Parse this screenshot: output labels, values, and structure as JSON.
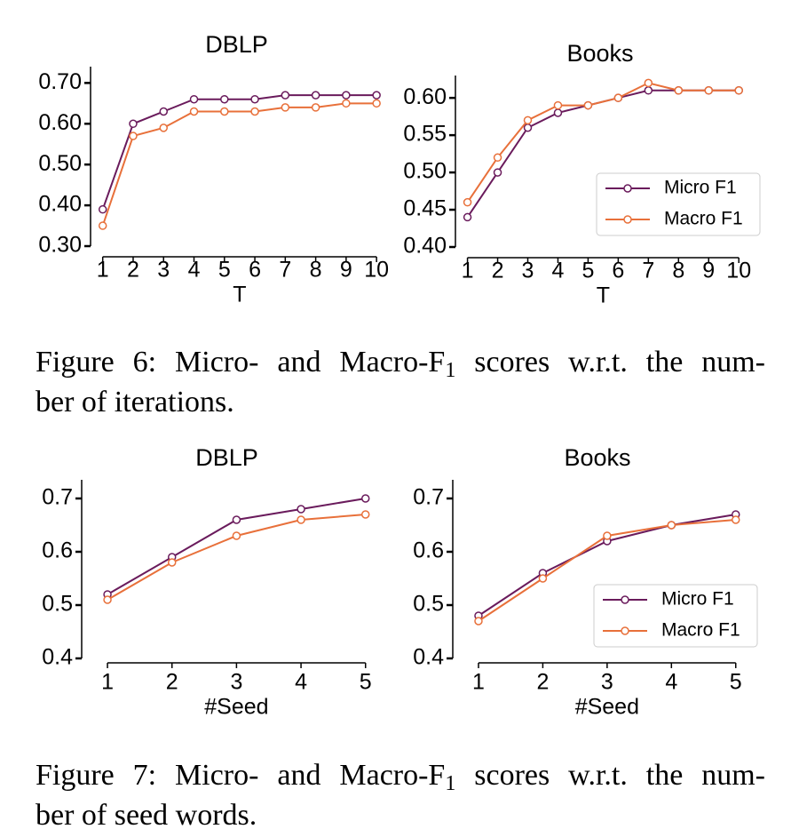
{
  "chart_data": [
    {
      "type": "line",
      "title": "DBLP",
      "xlabel": "T",
      "x": [
        1,
        2,
        3,
        4,
        5,
        6,
        7,
        8,
        9,
        10
      ],
      "series": [
        {
          "name": "Micro F1",
          "color": "#6a1b5c",
          "values": [
            0.39,
            0.6,
            0.63,
            0.66,
            0.66,
            0.66,
            0.67,
            0.67,
            0.67,
            0.67
          ]
        },
        {
          "name": "Macro F1",
          "color": "#e8703a",
          "values": [
            0.35,
            0.57,
            0.59,
            0.63,
            0.63,
            0.63,
            0.64,
            0.64,
            0.65,
            0.65
          ]
        }
      ],
      "xlim": [
        0.6,
        10.2
      ],
      "ylim": [
        0.3,
        0.74
      ],
      "xticks": [
        1,
        2,
        3,
        4,
        5,
        6,
        7,
        8,
        9,
        10
      ],
      "yticks": [
        {
          "value": 0.3,
          "label": "0.30"
        },
        {
          "value": 0.4,
          "label": "0.40"
        },
        {
          "value": 0.5,
          "label": "0.50"
        },
        {
          "value": 0.6,
          "label": "0.60"
        },
        {
          "value": 0.7,
          "label": "0.70"
        }
      ],
      "legend": false
    },
    {
      "type": "line",
      "title": "Books",
      "xlabel": "T",
      "x": [
        1,
        2,
        3,
        4,
        5,
        6,
        7,
        8,
        9,
        10
      ],
      "series": [
        {
          "name": "Micro F1",
          "color": "#6a1b5c",
          "values": [
            0.44,
            0.5,
            0.56,
            0.58,
            0.59,
            0.6,
            0.61,
            0.61,
            0.61,
            0.61
          ]
        },
        {
          "name": "Macro F1",
          "color": "#e8703a",
          "values": [
            0.46,
            0.52,
            0.57,
            0.59,
            0.59,
            0.6,
            0.62,
            0.61,
            0.61,
            0.61
          ]
        }
      ],
      "xlim": [
        0.6,
        10.2
      ],
      "ylim": [
        0.4,
        0.63
      ],
      "xticks": [
        1,
        2,
        3,
        4,
        5,
        6,
        7,
        8,
        9,
        10
      ],
      "yticks": [
        {
          "value": 0.4,
          "label": "0.40"
        },
        {
          "value": 0.45,
          "label": "0.45"
        },
        {
          "value": 0.5,
          "label": "0.50"
        },
        {
          "value": 0.55,
          "label": "0.55"
        },
        {
          "value": 0.6,
          "label": "0.60"
        }
      ],
      "legend": "lower right"
    },
    {
      "type": "line",
      "title": "DBLP",
      "xlabel": "#Seed",
      "x": [
        1,
        2,
        3,
        4,
        5
      ],
      "series": [
        {
          "name": "Micro F1",
          "color": "#6a1b5c",
          "values": [
            0.52,
            0.59,
            0.66,
            0.68,
            0.7
          ]
        },
        {
          "name": "Macro F1",
          "color": "#e8703a",
          "values": [
            0.51,
            0.58,
            0.63,
            0.66,
            0.67
          ]
        }
      ],
      "xlim": [
        0.6,
        5.1
      ],
      "ylim": [
        0.4,
        0.735
      ],
      "xticks": [
        1,
        2,
        3,
        4,
        5
      ],
      "yticks": [
        0.4,
        0.5,
        0.6,
        0.7
      ],
      "legend": false
    },
    {
      "type": "line",
      "title": "Books",
      "xlabel": "#Seed",
      "x": [
        1,
        2,
        3,
        4,
        5
      ],
      "series": [
        {
          "name": "Micro F1",
          "color": "#6a1b5c",
          "values": [
            0.48,
            0.56,
            0.62,
            0.65,
            0.67
          ]
        },
        {
          "name": "Macro F1",
          "color": "#e8703a",
          "values": [
            0.47,
            0.55,
            0.63,
            0.65,
            0.66
          ]
        }
      ],
      "xlim": [
        0.6,
        5.1
      ],
      "ylim": [
        0.4,
        0.735
      ],
      "xticks": [
        1,
        2,
        3,
        4,
        5
      ],
      "yticks": [
        0.4,
        0.5,
        0.6,
        0.7
      ],
      "legend": "lower right"
    }
  ],
  "captions": [
    {
      "line1_before": "Figure 6: Micro- and Macro-F",
      "subscript": "1",
      "line1_after": " scores w.r.t. the num-",
      "line2": "ber of iterations."
    },
    {
      "line1_before": "Figure 7: Micro- and Macro-F",
      "subscript": "1",
      "line1_after": " scores w.r.t. the num-",
      "line2": "ber of seed words."
    }
  ]
}
